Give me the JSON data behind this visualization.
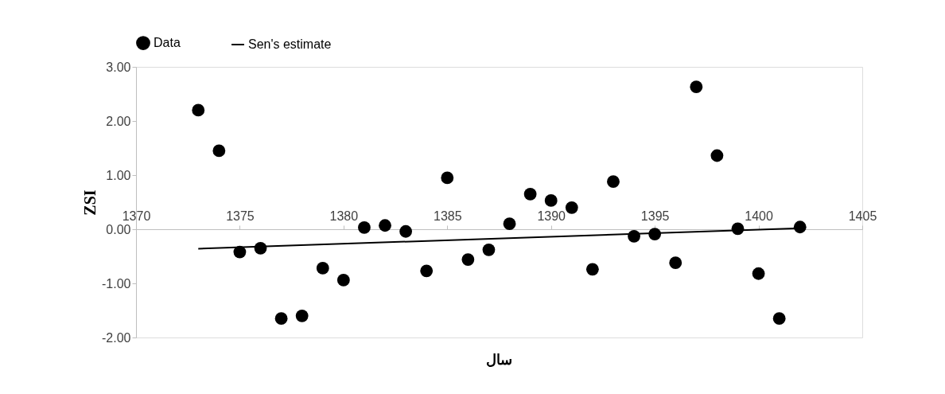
{
  "chart_data": {
    "type": "scatter",
    "xlabel": "سال",
    "ylabel": "ZSI",
    "x": [
      1373,
      1374,
      1375,
      1376,
      1377,
      1378,
      1379,
      1380,
      1381,
      1382,
      1383,
      1384,
      1385,
      1386,
      1387,
      1388,
      1389,
      1390,
      1391,
      1392,
      1393,
      1394,
      1395,
      1396,
      1397,
      1398,
      1399,
      1400,
      1401,
      1402
    ],
    "series": [
      {
        "name": "Data",
        "marker": "circle",
        "color": "#000000",
        "values": [
          2.2,
          1.45,
          -0.42,
          -0.35,
          -1.65,
          -1.6,
          -0.72,
          -0.94,
          0.03,
          0.07,
          -0.04,
          -0.77,
          0.95,
          -0.56,
          -0.38,
          0.1,
          0.65,
          0.53,
          0.4,
          -0.74,
          0.88,
          -0.13,
          -0.09,
          -0.62,
          2.63,
          1.36,
          0.01,
          -0.82,
          -1.65,
          0.04
        ]
      },
      {
        "name": "Sen's estimate",
        "type": "line",
        "color": "#000000",
        "x": [
          1373,
          1402
        ],
        "values": [
          -0.36,
          0.02
        ]
      }
    ],
    "xlim": [
      1370,
      1405
    ],
    "xticks": [
      1370,
      1375,
      1380,
      1385,
      1390,
      1395,
      1400,
      1405
    ],
    "ylim": [
      -2,
      3
    ],
    "yticks": [
      {
        "value": -2,
        "label": "-2.00"
      },
      {
        "value": -1,
        "label": "-1.00"
      },
      {
        "value": 0,
        "label": "0.00"
      },
      {
        "value": 1,
        "label": "1.00"
      },
      {
        "value": 2,
        "label": "2.00"
      },
      {
        "value": 3,
        "label": "3.00"
      }
    ],
    "legend": "top",
    "grid": false
  }
}
